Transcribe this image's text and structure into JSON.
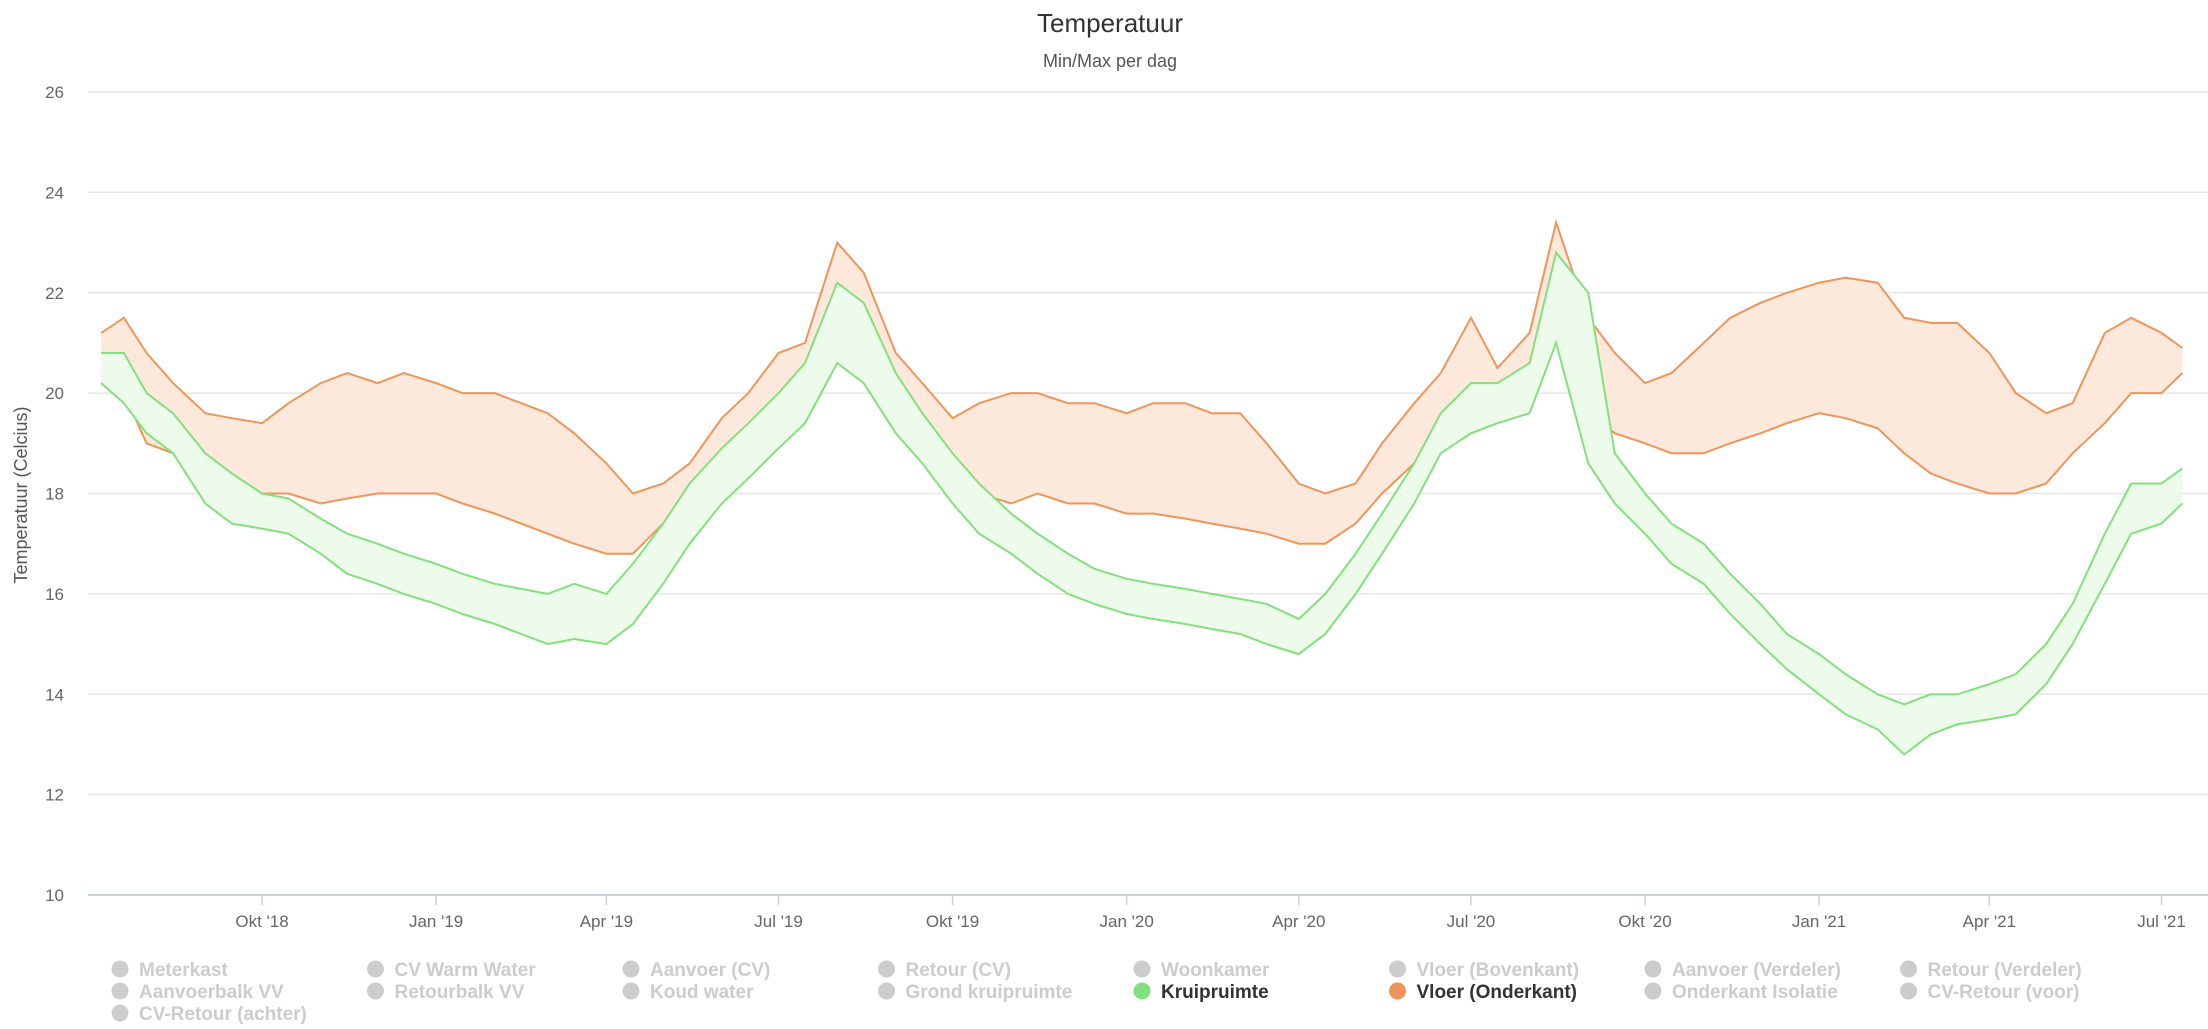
{
  "chart_data": {
    "type": "area",
    "title": "Temperatuur",
    "subtitle": "Min/Max per dag",
    "ylabel": "Temperatuur (Celcius)",
    "ylim": [
      10,
      26
    ],
    "yticks": [
      10,
      12,
      14,
      16,
      18,
      20,
      22,
      24,
      26
    ],
    "xlim": [
      "2018-07-01",
      "2021-07-15"
    ],
    "xticks": [
      {
        "date": "2018-10-01",
        "label": "Okt '18"
      },
      {
        "date": "2019-01-01",
        "label": "Jan '19"
      },
      {
        "date": "2019-04-01",
        "label": "Apr '19"
      },
      {
        "date": "2019-07-01",
        "label": "Jul '19"
      },
      {
        "date": "2019-10-01",
        "label": "Okt '19"
      },
      {
        "date": "2020-01-01",
        "label": "Jan '20"
      },
      {
        "date": "2020-04-01",
        "label": "Apr '20"
      },
      {
        "date": "2020-07-01",
        "label": "Jul '20"
      },
      {
        "date": "2020-10-01",
        "label": "Okt '20"
      },
      {
        "date": "2021-01-01",
        "label": "Jan '21"
      },
      {
        "date": "2021-04-01",
        "label": "Apr '21"
      },
      {
        "date": "2021-07-01",
        "label": "Jul '21"
      }
    ],
    "grid": true,
    "legend_position": "bottom",
    "series": [
      {
        "name": "Vloer (Onderkant)",
        "type": "arearange",
        "color": "#f0955a",
        "fill": "#fde8dc",
        "points": [
          {
            "x": "2018-07-08",
            "min": 20.4,
            "max": 21.2
          },
          {
            "x": "2018-07-20",
            "min": 20.0,
            "max": 21.5
          },
          {
            "x": "2018-08-01",
            "min": 19.0,
            "max": 20.8
          },
          {
            "x": "2018-08-15",
            "min": 18.8,
            "max": 20.2
          },
          {
            "x": "2018-09-01",
            "min": 18.2,
            "max": 19.6
          },
          {
            "x": "2018-09-15",
            "min": 18.0,
            "max": 19.5
          },
          {
            "x": "2018-10-01",
            "min": 18.0,
            "max": 19.4
          },
          {
            "x": "2018-10-15",
            "min": 18.0,
            "max": 19.8
          },
          {
            "x": "2018-11-01",
            "min": 17.8,
            "max": 20.2
          },
          {
            "x": "2018-11-15",
            "min": 17.9,
            "max": 20.4
          },
          {
            "x": "2018-12-01",
            "min": 18.0,
            "max": 20.2
          },
          {
            "x": "2018-12-15",
            "min": 18.0,
            "max": 20.4
          },
          {
            "x": "2019-01-01",
            "min": 18.0,
            "max": 20.2
          },
          {
            "x": "2019-01-15",
            "min": 17.8,
            "max": 20.0
          },
          {
            "x": "2019-02-01",
            "min": 17.6,
            "max": 20.0
          },
          {
            "x": "2019-02-15",
            "min": 17.4,
            "max": 19.8
          },
          {
            "x": "2019-03-01",
            "min": 17.2,
            "max": 19.6
          },
          {
            "x": "2019-03-15",
            "min": 17.0,
            "max": 19.2
          },
          {
            "x": "2019-04-01",
            "min": 16.8,
            "max": 18.6
          },
          {
            "x": "2019-04-15",
            "min": 16.8,
            "max": 18.0
          },
          {
            "x": "2019-05-01",
            "min": 17.4,
            "max": 18.2
          },
          {
            "x": "2019-05-15",
            "min": 17.8,
            "max": 18.6
          },
          {
            "x": "2019-06-01",
            "min": 18.5,
            "max": 19.5
          },
          {
            "x": "2019-06-15",
            "min": 19.0,
            "max": 20.0
          },
          {
            "x": "2019-07-01",
            "min": 19.5,
            "max": 20.8
          },
          {
            "x": "2019-07-15",
            "min": 19.8,
            "max": 21.0
          },
          {
            "x": "2019-08-01",
            "min": 21.0,
            "max": 23.0
          },
          {
            "x": "2019-08-15",
            "min": 20.8,
            "max": 22.4
          },
          {
            "x": "2019-09-01",
            "min": 19.5,
            "max": 20.8
          },
          {
            "x": "2019-09-15",
            "min": 18.8,
            "max": 20.2
          },
          {
            "x": "2019-10-01",
            "min": 18.2,
            "max": 19.5
          },
          {
            "x": "2019-10-15",
            "min": 18.0,
            "max": 19.8
          },
          {
            "x": "2019-11-01",
            "min": 17.8,
            "max": 20.0
          },
          {
            "x": "2019-11-15",
            "min": 18.0,
            "max": 20.0
          },
          {
            "x": "2019-12-01",
            "min": 17.8,
            "max": 19.8
          },
          {
            "x": "2019-12-15",
            "min": 17.8,
            "max": 19.8
          },
          {
            "x": "2020-01-01",
            "min": 17.6,
            "max": 19.6
          },
          {
            "x": "2020-01-15",
            "min": 17.6,
            "max": 19.8
          },
          {
            "x": "2020-02-01",
            "min": 17.5,
            "max": 19.8
          },
          {
            "x": "2020-02-15",
            "min": 17.4,
            "max": 19.6
          },
          {
            "x": "2020-03-01",
            "min": 17.3,
            "max": 19.6
          },
          {
            "x": "2020-03-15",
            "min": 17.2,
            "max": 19.0
          },
          {
            "x": "2020-04-01",
            "min": 17.0,
            "max": 18.2
          },
          {
            "x": "2020-04-15",
            "min": 17.0,
            "max": 18.0
          },
          {
            "x": "2020-05-01",
            "min": 17.4,
            "max": 18.2
          },
          {
            "x": "2020-05-15",
            "min": 18.0,
            "max": 19.0
          },
          {
            "x": "2020-06-01",
            "min": 18.6,
            "max": 19.8
          },
          {
            "x": "2020-06-15",
            "min": 19.4,
            "max": 20.4
          },
          {
            "x": "2020-07-01",
            "min": 19.6,
            "max": 21.5
          },
          {
            "x": "2020-07-15",
            "min": 19.8,
            "max": 20.5
          },
          {
            "x": "2020-08-01",
            "min": 20.2,
            "max": 21.2
          },
          {
            "x": "2020-08-15",
            "min": 21.0,
            "max": 23.4
          },
          {
            "x": "2020-09-01",
            "min": 19.6,
            "max": 21.5
          },
          {
            "x": "2020-09-15",
            "min": 19.2,
            "max": 20.8
          },
          {
            "x": "2020-10-01",
            "min": 19.0,
            "max": 20.2
          },
          {
            "x": "2020-10-15",
            "min": 18.8,
            "max": 20.4
          },
          {
            "x": "2020-11-01",
            "min": 18.8,
            "max": 21.0
          },
          {
            "x": "2020-11-15",
            "min": 19.0,
            "max": 21.5
          },
          {
            "x": "2020-12-01",
            "min": 19.2,
            "max": 21.8
          },
          {
            "x": "2020-12-15",
            "min": 19.4,
            "max": 22.0
          },
          {
            "x": "2021-01-01",
            "min": 19.6,
            "max": 22.2
          },
          {
            "x": "2021-01-15",
            "min": 19.5,
            "max": 22.3
          },
          {
            "x": "2021-02-01",
            "min": 19.3,
            "max": 22.2
          },
          {
            "x": "2021-02-15",
            "min": 18.8,
            "max": 21.5
          },
          {
            "x": "2021-03-01",
            "min": 18.4,
            "max": 21.4
          },
          {
            "x": "2021-03-15",
            "min": 18.2,
            "max": 21.4
          },
          {
            "x": "2021-04-01",
            "min": 18.0,
            "max": 20.8
          },
          {
            "x": "2021-04-15",
            "min": 18.0,
            "max": 20.0
          },
          {
            "x": "2021-05-01",
            "min": 18.2,
            "max": 19.6
          },
          {
            "x": "2021-05-15",
            "min": 18.8,
            "max": 19.8
          },
          {
            "x": "2021-06-01",
            "min": 19.4,
            "max": 21.2
          },
          {
            "x": "2021-06-15",
            "min": 20.0,
            "max": 21.5
          },
          {
            "x": "2021-07-01",
            "min": 20.0,
            "max": 21.2
          },
          {
            "x": "2021-07-12",
            "min": 20.4,
            "max": 20.9
          }
        ]
      },
      {
        "name": "Kruipruimte",
        "type": "arearange",
        "color": "#84e07e",
        "fill": "#ecfbea",
        "points": [
          {
            "x": "2018-07-08",
            "min": 20.2,
            "max": 20.8
          },
          {
            "x": "2018-07-20",
            "min": 19.8,
            "max": 20.8
          },
          {
            "x": "2018-08-01",
            "min": 19.2,
            "max": 20.0
          },
          {
            "x": "2018-08-15",
            "min": 18.8,
            "max": 19.6
          },
          {
            "x": "2018-09-01",
            "min": 17.8,
            "max": 18.8
          },
          {
            "x": "2018-09-15",
            "min": 17.4,
            "max": 18.4
          },
          {
            "x": "2018-10-01",
            "min": 17.3,
            "max": 18.0
          },
          {
            "x": "2018-10-15",
            "min": 17.2,
            "max": 17.9
          },
          {
            "x": "2018-11-01",
            "min": 16.8,
            "max": 17.5
          },
          {
            "x": "2018-11-15",
            "min": 16.4,
            "max": 17.2
          },
          {
            "x": "2018-12-01",
            "min": 16.2,
            "max": 17.0
          },
          {
            "x": "2018-12-15",
            "min": 16.0,
            "max": 16.8
          },
          {
            "x": "2019-01-01",
            "min": 15.8,
            "max": 16.6
          },
          {
            "x": "2019-01-15",
            "min": 15.6,
            "max": 16.4
          },
          {
            "x": "2019-02-01",
            "min": 15.4,
            "max": 16.2
          },
          {
            "x": "2019-02-15",
            "min": 15.2,
            "max": 16.1
          },
          {
            "x": "2019-03-01",
            "min": 15.0,
            "max": 16.0
          },
          {
            "x": "2019-03-15",
            "min": 15.1,
            "max": 16.2
          },
          {
            "x": "2019-04-01",
            "min": 15.0,
            "max": 16.0
          },
          {
            "x": "2019-04-15",
            "min": 15.4,
            "max": 16.6
          },
          {
            "x": "2019-05-01",
            "min": 16.2,
            "max": 17.4
          },
          {
            "x": "2019-05-15",
            "min": 17.0,
            "max": 18.2
          },
          {
            "x": "2019-06-01",
            "min": 17.8,
            "max": 18.9
          },
          {
            "x": "2019-06-15",
            "min": 18.3,
            "max": 19.4
          },
          {
            "x": "2019-07-01",
            "min": 18.9,
            "max": 20.0
          },
          {
            "x": "2019-07-15",
            "min": 19.4,
            "max": 20.6
          },
          {
            "x": "2019-08-01",
            "min": 20.6,
            "max": 22.2
          },
          {
            "x": "2019-08-15",
            "min": 20.2,
            "max": 21.8
          },
          {
            "x": "2019-09-01",
            "min": 19.2,
            "max": 20.4
          },
          {
            "x": "2019-09-15",
            "min": 18.6,
            "max": 19.6
          },
          {
            "x": "2019-10-01",
            "min": 17.8,
            "max": 18.8
          },
          {
            "x": "2019-10-15",
            "min": 17.2,
            "max": 18.2
          },
          {
            "x": "2019-11-01",
            "min": 16.8,
            "max": 17.6
          },
          {
            "x": "2019-11-15",
            "min": 16.4,
            "max": 17.2
          },
          {
            "x": "2019-12-01",
            "min": 16.0,
            "max": 16.8
          },
          {
            "x": "2019-12-15",
            "min": 15.8,
            "max": 16.5
          },
          {
            "x": "2020-01-01",
            "min": 15.6,
            "max": 16.3
          },
          {
            "x": "2020-01-15",
            "min": 15.5,
            "max": 16.2
          },
          {
            "x": "2020-02-01",
            "min": 15.4,
            "max": 16.1
          },
          {
            "x": "2020-02-15",
            "min": 15.3,
            "max": 16.0
          },
          {
            "x": "2020-03-01",
            "min": 15.2,
            "max": 15.9
          },
          {
            "x": "2020-03-15",
            "min": 15.0,
            "max": 15.8
          },
          {
            "x": "2020-04-01",
            "min": 14.8,
            "max": 15.5
          },
          {
            "x": "2020-04-15",
            "min": 15.2,
            "max": 16.0
          },
          {
            "x": "2020-05-01",
            "min": 16.0,
            "max": 16.8
          },
          {
            "x": "2020-05-15",
            "min": 16.8,
            "max": 17.6
          },
          {
            "x": "2020-06-01",
            "min": 17.8,
            "max": 18.6
          },
          {
            "x": "2020-06-15",
            "min": 18.8,
            "max": 19.6
          },
          {
            "x": "2020-07-01",
            "min": 19.2,
            "max": 20.2
          },
          {
            "x": "2020-07-15",
            "min": 19.4,
            "max": 20.2
          },
          {
            "x": "2020-08-01",
            "min": 19.6,
            "max": 20.6
          },
          {
            "x": "2020-08-15",
            "min": 21.0,
            "max": 22.8
          },
          {
            "x": "2020-09-01",
            "min": 18.6,
            "max": 22.0
          },
          {
            "x": "2020-09-15",
            "min": 17.8,
            "max": 18.8
          },
          {
            "x": "2020-10-01",
            "min": 17.2,
            "max": 18.0
          },
          {
            "x": "2020-10-15",
            "min": 16.6,
            "max": 17.4
          },
          {
            "x": "2020-11-01",
            "min": 16.2,
            "max": 17.0
          },
          {
            "x": "2020-11-15",
            "min": 15.6,
            "max": 16.4
          },
          {
            "x": "2020-12-01",
            "min": 15.0,
            "max": 15.8
          },
          {
            "x": "2020-12-15",
            "min": 14.5,
            "max": 15.2
          },
          {
            "x": "2021-01-01",
            "min": 14.0,
            "max": 14.8
          },
          {
            "x": "2021-01-15",
            "min": 13.6,
            "max": 14.4
          },
          {
            "x": "2021-02-01",
            "min": 13.3,
            "max": 14.0
          },
          {
            "x": "2021-02-15",
            "min": 12.8,
            "max": 13.8
          },
          {
            "x": "2021-03-01",
            "min": 13.2,
            "max": 14.0
          },
          {
            "x": "2021-03-15",
            "min": 13.4,
            "max": 14.0
          },
          {
            "x": "2021-04-01",
            "min": 13.5,
            "max": 14.2
          },
          {
            "x": "2021-04-15",
            "min": 13.6,
            "max": 14.4
          },
          {
            "x": "2021-05-01",
            "min": 14.2,
            "max": 15.0
          },
          {
            "x": "2021-05-15",
            "min": 15.0,
            "max": 15.8
          },
          {
            "x": "2021-06-01",
            "min": 16.2,
            "max": 17.2
          },
          {
            "x": "2021-06-15",
            "min": 17.2,
            "max": 18.2
          },
          {
            "x": "2021-07-01",
            "min": 17.4,
            "max": 18.2
          },
          {
            "x": "2021-07-12",
            "min": 17.8,
            "max": 18.5
          }
        ]
      }
    ],
    "legend": [
      {
        "label": "Meterkast",
        "active": false,
        "color": "#cccccc"
      },
      {
        "label": "CV Warm Water",
        "active": false,
        "color": "#cccccc"
      },
      {
        "label": "Aanvoer (CV)",
        "active": false,
        "color": "#cccccc"
      },
      {
        "label": "Retour (CV)",
        "active": false,
        "color": "#cccccc"
      },
      {
        "label": "Woonkamer",
        "active": false,
        "color": "#cccccc"
      },
      {
        "label": "Vloer (Bovenkant)",
        "active": false,
        "color": "#cccccc"
      },
      {
        "label": "Aanvoer (Verdeler)",
        "active": false,
        "color": "#cccccc"
      },
      {
        "label": "Retour (Verdeler)",
        "active": false,
        "color": "#cccccc"
      },
      {
        "label": "Aanvoerbalk VV",
        "active": false,
        "color": "#cccccc"
      },
      {
        "label": "Retourbalk VV",
        "active": false,
        "color": "#cccccc"
      },
      {
        "label": "Koud water",
        "active": false,
        "color": "#cccccc"
      },
      {
        "label": "Grond kruipruimte",
        "active": false,
        "color": "#cccccc"
      },
      {
        "label": "Kruipruimte",
        "active": true,
        "color": "#84e07e"
      },
      {
        "label": "Vloer (Onderkant)",
        "active": true,
        "color": "#f0955a"
      },
      {
        "label": "Onderkant Isolatie",
        "active": false,
        "color": "#cccccc"
      },
      {
        "label": "CV-Retour (voor)",
        "active": false,
        "color": "#cccccc"
      },
      {
        "label": "CV-Retour (achter)",
        "active": false,
        "color": "#cccccc"
      }
    ]
  }
}
